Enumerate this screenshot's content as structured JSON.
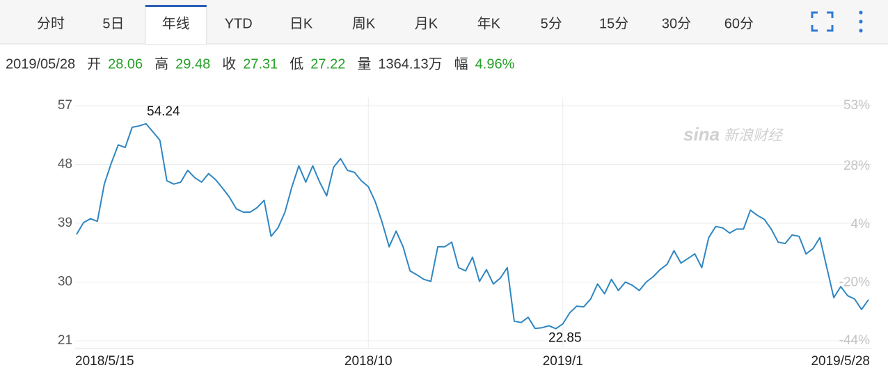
{
  "tabs": [
    {
      "label": "分时"
    },
    {
      "label": "5日"
    },
    {
      "label": "年线",
      "active": true
    },
    {
      "label": "YTD"
    },
    {
      "label": "日K"
    },
    {
      "label": "周K"
    },
    {
      "label": "月K"
    },
    {
      "label": "年K"
    },
    {
      "label": "5分"
    },
    {
      "label": "15分"
    },
    {
      "label": "30分"
    },
    {
      "label": "60分"
    }
  ],
  "quote": {
    "date": "2019/05/28",
    "items": [
      {
        "label": "开",
        "value": 28.06
      },
      {
        "label": "高",
        "value": 29.48
      },
      {
        "label": "收",
        "value": 27.31
      },
      {
        "label": "低",
        "value": 27.22
      },
      {
        "label": "量",
        "value": "1364.13万"
      },
      {
        "label": "幅",
        "value": "4.96%"
      }
    ]
  },
  "watermark": {
    "logo": "sina",
    "text": "新浪财经"
  },
  "chart_data": {
    "type": "line",
    "color": "#2f86c2",
    "grid": true,
    "ylim": [
      21,
      57
    ],
    "yticks": [
      21,
      30,
      39,
      48,
      57
    ],
    "y2lim": [
      -44,
      53
    ],
    "y2ticks": [
      {
        "value": -44,
        "label": "-44%"
      },
      {
        "value": -20,
        "label": "-20%"
      },
      {
        "value": 4,
        "label": "4%"
      },
      {
        "value": 28,
        "label": "28%"
      },
      {
        "value": 53,
        "label": "53%"
      }
    ],
    "categories": [
      "2018/5/15",
      null,
      null,
      null,
      null,
      null,
      null,
      null,
      null,
      null,
      null,
      null,
      null,
      null,
      null,
      null,
      null,
      null,
      null,
      null,
      null,
      null,
      null,
      null,
      null,
      null,
      null,
      null,
      null,
      null,
      null,
      null,
      null,
      null,
      null,
      null,
      null,
      null,
      null,
      null,
      null,
      null,
      "2018/10",
      null,
      null,
      null,
      null,
      null,
      null,
      null,
      null,
      null,
      null,
      null,
      null,
      null,
      null,
      null,
      null,
      null,
      null,
      null,
      null,
      null,
      null,
      null,
      null,
      null,
      null,
      null,
      "2019/1",
      null,
      null,
      null,
      null,
      null,
      null,
      null,
      null,
      null,
      null,
      null,
      null,
      null,
      null,
      null,
      null,
      null,
      null,
      null,
      null,
      null,
      null,
      null,
      null,
      null,
      null,
      null,
      null,
      null,
      null,
      null,
      null,
      null,
      null,
      null,
      null,
      null,
      null,
      null,
      null,
      null,
      null,
      null,
      "2019/5/28"
    ],
    "values": [
      37.3,
      39.1,
      39.7,
      39.3,
      45.0,
      48.2,
      51.0,
      50.6,
      53.7,
      53.9,
      54.24,
      53.0,
      51.7,
      45.5,
      45.0,
      45.3,
      47.1,
      46.0,
      45.3,
      46.6,
      45.7,
      44.4,
      43.0,
      41.2,
      40.7,
      40.7,
      41.4,
      42.5,
      37.0,
      38.3,
      40.7,
      44.6,
      47.8,
      45.3,
      47.8,
      45.3,
      43.2,
      47.6,
      48.9,
      47.1,
      46.8,
      45.5,
      44.6,
      42.3,
      39.1,
      35.4,
      37.8,
      35.4,
      31.7,
      31.1,
      30.4,
      30.1,
      35.4,
      35.4,
      36.1,
      32.2,
      31.7,
      33.8,
      30.1,
      31.9,
      29.7,
      30.6,
      32.2,
      24.0,
      23.8,
      24.6,
      22.9,
      23.0,
      23.3,
      22.85,
      23.6,
      25.3,
      26.3,
      26.2,
      27.4,
      29.7,
      28.2,
      30.4,
      28.7,
      30.0,
      29.5,
      28.7,
      30.0,
      30.8,
      31.9,
      32.7,
      34.8,
      32.9,
      33.6,
      34.3,
      32.2,
      36.8,
      38.5,
      38.3,
      37.5,
      38.1,
      38.1,
      41.0,
      40.2,
      39.6,
      38.1,
      36.1,
      35.9,
      37.2,
      37.0,
      34.3,
      35.1,
      36.8,
      32.2,
      27.6,
      29.3,
      27.9,
      27.4,
      25.8,
      27.31
    ]
  }
}
